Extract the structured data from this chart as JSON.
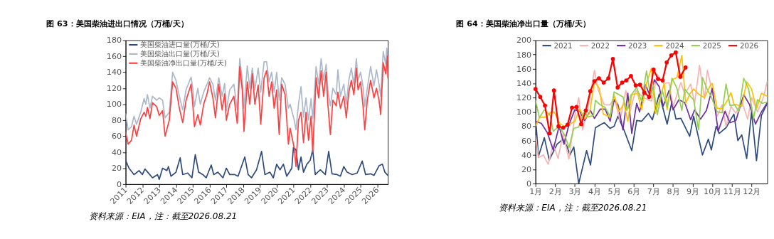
{
  "chart_data": [
    {
      "type": "line",
      "title": "图 63：美国柴油进出口情况（万桶/天）",
      "annotations": [
        "资料来源：EIA，注：截至2026.08.21"
      ],
      "xlim": [
        2011,
        2026.63
      ],
      "xticks": [
        2011,
        2012,
        2013,
        2014,
        2015,
        2016,
        2017,
        2018,
        2019,
        2020,
        2021,
        2022,
        2023,
        2024,
        2025,
        2026
      ],
      "ylim": [
        0,
        180
      ],
      "yticks": [
        0,
        20,
        40,
        60,
        80,
        100,
        120,
        140,
        160,
        180
      ],
      "grid": false,
      "legend": "top left",
      "series": [
        {
          "name": "美国柴油进口量(万桶/天)",
          "color": "#2f4b7c",
          "x": [
            2011.0,
            2011.2,
            2011.5,
            2011.8,
            2012.0,
            2012.15,
            2012.4,
            2012.6,
            2012.9,
            2013.0,
            2013.2,
            2013.45,
            2013.55,
            2013.7,
            2014.0,
            2014.25,
            2014.4,
            2014.7,
            2014.95,
            2015.15,
            2015.35,
            2015.6,
            2015.8,
            2016.1,
            2016.25,
            2016.5,
            2016.8,
            2017.0,
            2017.2,
            2017.5,
            2017.7,
            2018.1,
            2018.3,
            2018.5,
            2018.8,
            2019.1,
            2019.3,
            2019.6,
            2019.8,
            2020.0,
            2020.2,
            2020.4,
            2020.6,
            2020.9,
            2021.0,
            2021.15,
            2021.3,
            2021.45,
            2021.6,
            2021.8,
            2022.0,
            2022.15,
            2022.3,
            2022.6,
            2022.9,
            2023.1,
            2023.3,
            2023.6,
            2023.8,
            2024.0,
            2024.2,
            2024.5,
            2024.8,
            2025.1,
            2025.3,
            2025.6,
            2025.8,
            2026.1,
            2026.3,
            2026.45,
            2026.63
          ],
          "values": [
            30,
            20,
            12,
            17,
            12,
            19,
            13,
            8,
            12,
            6,
            20,
            17,
            22,
            10,
            15,
            33,
            12,
            14,
            8,
            37,
            15,
            12,
            8,
            24,
            12,
            15,
            8,
            20,
            12,
            12,
            10,
            34,
            12,
            8,
            18,
            41,
            12,
            15,
            8,
            25,
            18,
            25,
            10,
            20,
            46,
            43,
            18,
            34,
            15,
            25,
            30,
            43,
            12,
            18,
            12,
            41,
            13,
            12,
            10,
            22,
            15,
            12,
            14,
            29,
            12,
            13,
            11,
            23,
            25,
            15,
            11
          ]
        },
        {
          "name": "美国柴油出口量(万桶/天)",
          "color": "#adb9ca",
          "x": [
            2011.0,
            2011.15,
            2011.35,
            2011.5,
            2011.65,
            2011.9,
            2012.1,
            2012.2,
            2012.3,
            2012.45,
            2012.6,
            2012.85,
            2013.0,
            2013.2,
            2013.35,
            2013.6,
            2013.8,
            2014.0,
            2014.2,
            2014.4,
            2014.6,
            2014.9,
            2015.0,
            2015.1,
            2015.3,
            2015.45,
            2015.65,
            2015.85,
            2016.0,
            2016.2,
            2016.35,
            2016.55,
            2016.75,
            2016.9,
            2017.0,
            2017.2,
            2017.45,
            2017.65,
            2017.8,
            2017.95,
            2018.05,
            2018.25,
            2018.4,
            2018.55,
            2018.7,
            2018.9,
            2019.05,
            2019.25,
            2019.4,
            2019.55,
            2019.7,
            2019.85,
            2020.0,
            2020.15,
            2020.3,
            2020.5,
            2020.7,
            2020.8,
            2021.05,
            2021.15,
            2021.3,
            2021.45,
            2021.6,
            2021.75,
            2021.9,
            2022.05,
            2022.15,
            2022.35,
            2022.5,
            2022.65,
            2022.8,
            2022.95,
            2023.05,
            2023.2,
            2023.35,
            2023.55,
            2023.65,
            2023.8,
            2024.0,
            2024.15,
            2024.3,
            2024.45,
            2024.6,
            2024.75,
            2024.85,
            2025.0,
            2025.15,
            2025.25,
            2025.4,
            2025.6,
            2025.8,
            2025.95,
            2026.1,
            2026.2,
            2026.35,
            2026.5,
            2026.56,
            2026.63
          ],
          "values": [
            88,
            68,
            72,
            85,
            75,
            90,
            107,
            100,
            112,
            95,
            110,
            105,
            108,
            105,
            83,
            90,
            140,
            130,
            110,
            93,
            118,
            134,
            120,
            97,
            120,
            100,
            115,
            125,
            133,
            125,
            105,
            133,
            110,
            126,
            92,
            118,
            125,
            93,
            157,
            130,
            95,
            148,
            120,
            145,
            118,
            145,
            115,
            153,
            153,
            128,
            140,
            115,
            140,
            105,
            133,
            125,
            95,
            100,
            80,
            68,
            100,
            122,
            84,
            108,
            80,
            107,
            82,
            147,
            125,
            157,
            130,
            150,
            118,
            98,
            120,
            112,
            143,
            110,
            125,
            100,
            130,
            145,
            125,
            157,
            130,
            140,
            122,
            97,
            120,
            147,
            123,
            143,
            125,
            110,
            166,
            150,
            170,
            155
          ]
        },
        {
          "name": "美国柴油净出口量(万桶/天)",
          "color": "#ff4040",
          "x": [
            2011.0,
            2011.15,
            2011.35,
            2011.5,
            2011.65,
            2011.9,
            2012.1,
            2012.2,
            2012.3,
            2012.45,
            2012.6,
            2012.85,
            2013.0,
            2013.2,
            2013.35,
            2013.6,
            2013.8,
            2014.0,
            2014.2,
            2014.4,
            2014.6,
            2014.9,
            2015.0,
            2015.1,
            2015.3,
            2015.45,
            2015.65,
            2015.85,
            2016.0,
            2016.2,
            2016.35,
            2016.55,
            2016.75,
            2016.9,
            2017.0,
            2017.2,
            2017.45,
            2017.65,
            2017.8,
            2017.95,
            2018.05,
            2018.25,
            2018.4,
            2018.55,
            2018.7,
            2018.9,
            2019.05,
            2019.25,
            2019.4,
            2019.55,
            2019.7,
            2019.85,
            2020.0,
            2020.15,
            2020.3,
            2020.5,
            2020.7,
            2020.8,
            2021.05,
            2021.15,
            2021.3,
            2021.45,
            2021.6,
            2021.75,
            2021.9,
            2022.05,
            2022.15,
            2022.35,
            2022.5,
            2022.65,
            2022.8,
            2022.95,
            2023.05,
            2023.2,
            2023.35,
            2023.55,
            2023.65,
            2023.8,
            2024.0,
            2024.15,
            2024.3,
            2024.45,
            2024.6,
            2024.75,
            2024.85,
            2025.0,
            2025.15,
            2025.25,
            2025.4,
            2025.6,
            2025.8,
            2025.95,
            2026.1,
            2026.2,
            2026.35,
            2026.5,
            2026.6,
            2026.63
          ],
          "values": [
            65,
            50,
            55,
            74,
            60,
            82,
            90,
            85,
            96,
            82,
            102,
            97,
            86,
            92,
            60,
            80,
            128,
            120,
            95,
            77,
            105,
            125,
            100,
            72,
            87,
            74,
            100,
            113,
            128,
            108,
            83,
            125,
            93,
            113,
            80,
            100,
            110,
            76,
            147,
            118,
            66,
            128,
            100,
            138,
            100,
            124,
            75,
            133,
            142,
            110,
            128,
            95,
            118,
            62,
            125,
            112,
            50,
            70,
            45,
            22,
            80,
            90,
            52,
            90,
            55,
            85,
            40,
            133,
            108,
            142,
            110,
            140,
            100,
            62,
            105,
            98,
            115,
            95,
            110,
            83,
            115,
            130,
            112,
            145,
            118,
            128,
            97,
            68,
            105,
            130,
            108,
            120,
            105,
            87,
            152,
            138,
            160,
            133
          ]
        }
      ]
    },
    {
      "type": "line",
      "title": "图 64：美国柴油净出口量（万桶/天）",
      "annotations": [
        "资料来源：EIA，注：截至2026.08.21"
      ],
      "xlim": [
        1,
        12.8
      ],
      "xticks": [
        {
          "value": 1,
          "label": "1月"
        },
        {
          "value": 2,
          "label": "2月"
        },
        {
          "value": 3,
          "label": "3月"
        },
        {
          "value": 4,
          "label": "4月"
        },
        {
          "value": 5,
          "label": "5月"
        },
        {
          "value": 6,
          "label": "6月"
        },
        {
          "value": 7,
          "label": "7月"
        },
        {
          "value": 8,
          "label": "8月"
        },
        {
          "value": 9,
          "label": "9月"
        },
        {
          "value": 10,
          "label": "10月"
        },
        {
          "value": 11,
          "label": "11月"
        },
        {
          "value": 12,
          "label": "12月"
        }
      ],
      "ylim": [
        0,
        200
      ],
      "yticks": [
        0,
        20,
        40,
        60,
        80,
        100,
        120,
        140,
        160,
        180,
        200
      ],
      "grid": false,
      "legend": "top",
      "series": [
        {
          "name": "2021",
          "color": "#2f4b7c",
          "x": [
            1.0,
            1.15,
            1.45,
            1.7,
            2.1,
            2.4,
            2.6,
            2.75,
            2.95,
            3.2,
            3.6,
            3.8,
            4.05,
            4.3,
            4.5,
            4.8,
            5.0,
            5.2,
            5.5,
            5.9,
            6.15,
            6.4,
            6.75,
            6.95,
            7.3,
            7.7,
            7.95,
            8.15,
            8.4,
            8.85,
            9.05,
            9.5,
            9.8,
            9.95,
            10.2,
            10.35,
            10.7,
            11.1,
            11.3,
            11.5,
            11.75,
            12.0,
            12.25,
            12.5,
            12.8
          ],
          "values": [
            93,
            38,
            64,
            33,
            55,
            62,
            52,
            40,
            51,
            0,
            46,
            26,
            78,
            82,
            85,
            77,
            80,
            94,
            75,
            46,
            88,
            87,
            98,
            89,
            125,
            83,
            115,
            90,
            91,
            66,
            94,
            40,
            62,
            47,
            80,
            70,
            78,
            97,
            60,
            68,
            35,
            100,
            32,
            95,
            112
          ]
        },
        {
          "name": "2022",
          "color": "#f8b4b4",
          "x": [
            1.0,
            1.15,
            1.4,
            1.65,
            1.9,
            2.15,
            2.4,
            2.7,
            3.0,
            3.2,
            3.4,
            3.7,
            4.0,
            4.2,
            4.5,
            4.8,
            5.0,
            5.3,
            5.6,
            5.8,
            6.1,
            6.5,
            6.9,
            7.2,
            7.5,
            7.8,
            8.0,
            8.4,
            8.6,
            8.9,
            9.1,
            9.35,
            9.6,
            9.75,
            10.0,
            10.25,
            10.5,
            10.7,
            10.95,
            11.2,
            11.5,
            11.8,
            12.0,
            12.3,
            12.6,
            12.8
          ],
          "values": [
            67,
            36,
            40,
            27,
            55,
            35,
            70,
            34,
            95,
            120,
            75,
            110,
            158,
            130,
            110,
            110,
            120,
            88,
            130,
            100,
            130,
            120,
            115,
            152,
            140,
            141,
            107,
            141,
            125,
            139,
            112,
            165,
            118,
            158,
            128,
            94,
            110,
            80,
            108,
            98,
            115,
            90,
            120,
            100,
            120,
            143
          ]
        },
        {
          "name": "2023",
          "color": "#7030a0",
          "x": [
            1.0,
            1.3,
            1.6,
            1.9,
            2.2,
            2.45,
            2.7,
            3.0,
            3.25,
            3.5,
            3.8,
            4.0,
            4.3,
            4.55,
            4.8,
            5.0,
            5.2,
            5.45,
            5.7,
            5.9,
            6.15,
            6.3,
            6.6,
            6.85,
            7.05,
            7.3,
            7.5,
            7.8,
            8.0,
            8.3,
            8.6,
            8.9,
            9.1,
            9.4,
            9.7,
            10.0,
            10.3,
            10.65,
            10.9,
            11.2,
            11.6,
            11.9,
            12.2,
            12.5,
            12.8
          ],
          "values": [
            87,
            84,
            71,
            47,
            80,
            55,
            82,
            103,
            101,
            88,
            102,
            91,
            104,
            104,
            87,
            117,
            110,
            75,
            126,
            70,
            112,
            100,
            138,
            121,
            145,
            135,
            108,
            130,
            103,
            117,
            113,
            89,
            103,
            90,
            102,
            133,
            73,
            101,
            85,
            88,
            124,
            110,
            83,
            100,
            113
          ]
        },
        {
          "name": "2024",
          "color": "#ffc000",
          "x": [
            1.0,
            1.2,
            1.55,
            1.75,
            1.95,
            2.25,
            2.5,
            2.8,
            3.0,
            3.25,
            3.5,
            3.75,
            4.0,
            4.25,
            4.45,
            4.8,
            5.0,
            5.25,
            5.5,
            5.7,
            5.9,
            6.2,
            6.4,
            6.65,
            6.9,
            7.1,
            7.35,
            7.55,
            7.7,
            7.95,
            8.2,
            8.45,
            8.65,
            8.85,
            9.05,
            9.3,
            9.6,
            9.9,
            10.0,
            10.25,
            10.5,
            10.75,
            10.95,
            11.1,
            11.5,
            11.75,
            12.0,
            12.25,
            12.5,
            12.8
          ],
          "values": [
            80,
            92,
            93,
            99,
            100,
            83,
            80,
            84,
            87,
            104,
            90,
            98,
            142,
            133,
            97,
            93,
            124,
            100,
            112,
            87,
            124,
            126,
            103,
            140,
            161,
            98,
            120,
            140,
            103,
            145,
            148,
            179,
            112,
            125,
            132,
            125,
            120,
            137,
            140,
            105,
            105,
            115,
            127,
            111,
            108,
            142,
            132,
            104,
            126,
            122
          ]
        },
        {
          "name": "2025",
          "color": "#92d050",
          "x": [
            1.0,
            1.2,
            1.45,
            1.75,
            1.9,
            2.2,
            2.5,
            2.7,
            2.95,
            3.2,
            3.45,
            3.7,
            3.95,
            4.05,
            4.3,
            4.55,
            4.8,
            5.0,
            5.2,
            5.45,
            5.65,
            5.85,
            6.15,
            6.4,
            6.65,
            6.85,
            7.0,
            7.2,
            7.45,
            7.7,
            7.95,
            8.2,
            8.45,
            8.6,
            8.85,
            9.05,
            9.3,
            9.5,
            9.75,
            9.95,
            10.25,
            10.5,
            10.7,
            10.9,
            11.15,
            11.35,
            11.6,
            11.85,
            12.1,
            12.3,
            12.55,
            12.8
          ],
          "values": [
            116,
            92,
            103,
            95,
            73,
            80,
            67,
            50,
            77,
            79,
            99,
            93,
            95,
            116,
            110,
            106,
            94,
            128,
            125,
            121,
            102,
            123,
            134,
            115,
            157,
            122,
            136,
            96,
            130,
            107,
            147,
            133,
            102,
            132,
            123,
            117,
            75,
            148,
            131,
            121,
            100,
            99,
            139,
            109,
            110,
            100,
            147,
            132,
            91,
            117,
            112,
            114
          ]
        },
        {
          "name": "2026",
          "color": "#ff0000",
          "marker": "circle",
          "x": [
            1.0,
            1.24,
            1.48,
            1.72,
            1.94,
            2.17,
            2.41,
            2.63,
            2.86,
            3.09,
            3.33,
            3.56,
            3.79,
            4.0,
            4.23,
            4.47,
            4.71,
            4.94,
            5.18,
            5.41,
            5.62,
            5.86,
            6.1,
            6.32,
            6.54,
            6.78,
            7.01,
            7.24,
            7.47,
            7.68,
            7.91,
            8.14,
            8.37,
            8.64
          ],
          "values": [
            132,
            121,
            109,
            70,
            130,
            80,
            78,
            82,
            106,
            107,
            83,
            102,
            129,
            143,
            147,
            141,
            147,
            174,
            134,
            141,
            144,
            150,
            137,
            138,
            127,
            121,
            159,
            146,
            144,
            169,
            179,
            183,
            149,
            162
          ]
        }
      ]
    }
  ]
}
